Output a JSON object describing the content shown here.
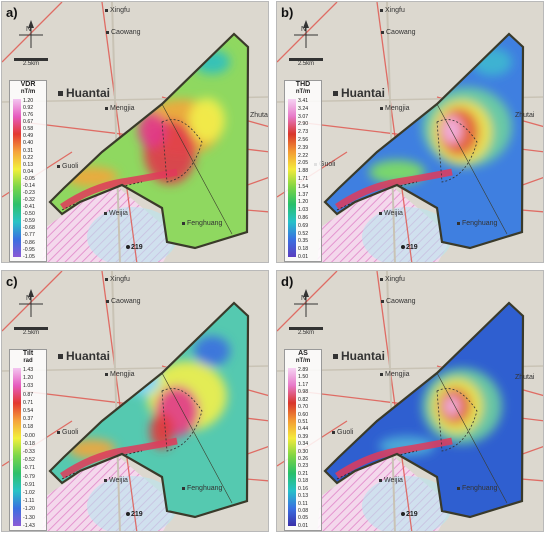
{
  "panels": [
    {
      "label": "a)",
      "legend_title": "VDR",
      "legend_unit": "nT/m",
      "ticks": [
        "1.20",
        "0.92",
        "0.76",
        "0.67",
        "0.58",
        "0.49",
        "0.40",
        "0.31",
        "0.22",
        "0.13",
        "0.04",
        "-0.05",
        "-0.14",
        "-0.23",
        "-0.32",
        "-0.41",
        "-0.50",
        "-0.59",
        "-0.68",
        "-0.77",
        "-0.86",
        "-0.95",
        "-1.05"
      ]
    },
    {
      "label": "b)",
      "legend_title": "THD",
      "legend_unit": "nT/m",
      "ticks": [
        "3.41",
        "3.24",
        "3.07",
        "2.90",
        "2.73",
        "2.56",
        "2.39",
        "2.22",
        "2.05",
        "1.88",
        "1.71",
        "1.54",
        "1.37",
        "1.20",
        "1.03",
        "0.86",
        "0.69",
        "0.52",
        "0.35",
        "0.18",
        "0.01"
      ]
    },
    {
      "label": "c)",
      "legend_title": "Tilt",
      "legend_unit": "rad",
      "ticks": [
        "1.43",
        "1.20",
        "1.03",
        "0.87",
        "0.71",
        "0.54",
        "0.37",
        "0.18",
        "-0.00",
        "-0.18",
        "-0.33",
        "-0.52",
        "-0.71",
        "-0.79",
        "-0.91",
        "-1.02",
        "-1.11",
        "-1.20",
        "-1.30",
        "-1.43"
      ]
    },
    {
      "label": "d)",
      "legend_title": "AS",
      "legend_unit": "nT/m",
      "ticks": [
        "2.89",
        "1.50",
        "1.17",
        "0.98",
        "0.82",
        "0.70",
        "0.60",
        "0.51",
        "0.44",
        "0.39",
        "0.34",
        "0.30",
        "0.26",
        "0.23",
        "0.21",
        "0.18",
        "0.16",
        "0.13",
        "0.11",
        "0.08",
        "0.05",
        "0.01"
      ]
    }
  ],
  "places": {
    "xingfu": "Xingfu",
    "caowang": "Caowang",
    "huantai": "Huantai",
    "mengjia": "Mengjia",
    "zhutai": "Zhutai",
    "guoli": "Guoli",
    "weijia": "Weijia",
    "fenghuang": "Fenghuang",
    "road": "219"
  },
  "map_ui": {
    "north": "N",
    "scale": "2.5km"
  },
  "colors": {
    "survey_outline": "#3a3a2a",
    "road_red": "#e0524a",
    "hatch_pink": "#f2a8d8"
  }
}
